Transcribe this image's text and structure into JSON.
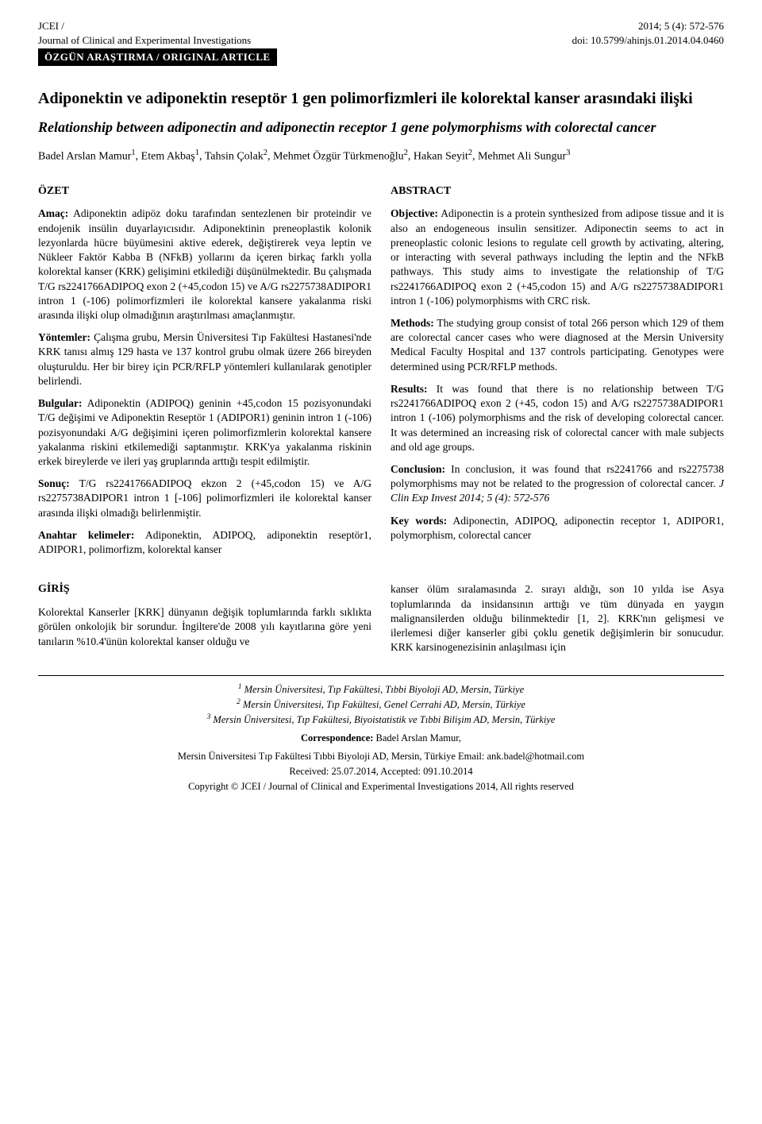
{
  "header": {
    "journal_abbrev": "JCEI /",
    "journal_full": "Journal of Clinical and Experimental Investigations",
    "issue": "2014; 5 (4): 572-576",
    "doi": "doi: 10.5799/ahinjs.01.2014.04.0460",
    "article_tag": "ÖZGÜN ARAŞTIRMA / ORIGINAL ARTICLE"
  },
  "titles": {
    "tr": "Adiponektin ve adiponektin reseptör 1 gen polimorfizmleri ile kolorektal kanser arasındaki ilişki",
    "en": "Relationship between adiponectin and adiponectin receptor 1 gene polymorphisms with colorectal cancer"
  },
  "authors_html": "Badel Arslan Mamur<sup>1</sup>, Etem Akbaş<sup>1</sup>, Tahsin Çolak<sup>2</sup>, Mehmet Özgür Türkmenoğlu<sup>2</sup>, Hakan Seyit<sup>2</sup>, Mehmet Ali Sungur<sup>3</sup>",
  "ozet": {
    "heading": "ÖZET",
    "amac_label": "Amaç:",
    "amac": " Adiponektin adipöz doku tarafından sentezlenen bir proteindir ve endojenik insülin duyarlayıcısıdır. Adiponektinin preneoplastik kolonik lezyonlarda hücre büyümesini aktive ederek, değiştirerek veya leptin ve Nükleer Faktör Kabba B (NFkB) yollarını da içeren birkaç farklı yolla kolorektal kanser (KRK) gelişimini etkilediği düşünülmektedir. Bu çalışmada T/G rs2241766ADIPOQ exon 2 (+45,codon 15) ve A/G rs2275738ADIPOR1 intron 1 (-106) polimorfizmleri ile kolorektal kansere yakalanma riski arasında ilişki olup olmadığının araştırılması amaçlanmıştır.",
    "yontem_label": "Yöntemler:",
    "yontem": " Çalışma grubu, Mersin Üniversitesi Tıp Fakültesi Hastanesi'nde KRK tanısı almış 129 hasta ve 137 kontrol grubu olmak üzere 266 bireyden oluşturuldu. Her bir birey için PCR/RFLP yöntemleri kullanılarak genotipler belirlendi.",
    "bulgular_label": "Bulgular:",
    "bulgular": " Adiponektin (ADIPOQ) geninin +45,codon 15 pozisyonundaki T/G değişimi ve Adiponektin Reseptör 1 (ADIPOR1) geninin intron 1 (-106) pozisyonundaki A/G değişimini içeren polimorfizmlerin kolorektal kansere yakalanma riskini etkilemediği saptanmıştır. KRK'ya yakalanma riskinin erkek bireylerde ve ileri yaş gruplarında arttığı tespit edilmiştir.",
    "sonuc_label": "Sonuç:",
    "sonuc": " T/G rs2241766ADIPOQ ekzon 2 (+45,codon 15) ve A/G rs2275738ADIPOR1 intron 1 [-106] polimorfizmleri ile kolorektal kanser arasında ilişki olmadığı belirlenmiştir.",
    "keywords_label": "Anahtar kelimeler:",
    "keywords": " Adiponektin, ADIPOQ, adiponektin reseptör1, ADIPOR1, polimorfizm, kolorektal kanser"
  },
  "abstract": {
    "heading": "ABSTRACT",
    "objective_label": "Objective:",
    "objective": " Adiponectin is a protein synthesized from adipose tissue and it is also an endogeneous insulin sensitizer. Adiponectin seems to act in preneoplastic colonic lesions to regulate cell growth by activating, altering, or interacting with several pathways including the leptin and the NFkB pathways. This study aims to investigate the relationship of T/G rs2241766ADIPOQ exon 2 (+45,codon 15) and A/G rs2275738ADIPOR1 intron 1 (-106) polymorphisms with CRC risk.",
    "methods_label": "Methods:",
    "methods": " The studying group consist of total 266 person which 129 of them are colorectal cancer cases who were diagnosed at the Mersin University Medical Faculty Hospital and 137 controls participating. Genotypes were determined using PCR/RFLP methods.",
    "results_label": "Results:",
    "results": " It was found that there is no relationship between T/G rs2241766ADIPOQ exon 2 (+45, codon 15) and A/G rs2275738ADIPOR1 intron 1 (-106) polymorphisms and the risk of developing colorectal cancer. It was determined an increasing risk of colorectal cancer with male subjects and old age groups.",
    "conclusion_label": "Conclusion:",
    "conclusion_html": " In conclusion, it was found that rs2241766 and rs2275738 polymorphisms may not be related to the progression of colorectal cancer. <i>J Clin Exp Invest 2014; 5 (4): 572-576</i>",
    "keywords_label": "Key words:",
    "keywords": " Adiponectin, ADIPOQ, adiponectin receptor 1, ADIPOR1, polymorphism, colorectal cancer"
  },
  "giris": {
    "heading": "GİRİŞ",
    "left": "Kolorektal Kanserler [KRK] dünyanın değişik toplumlarında farklı sıklıkta görülen onkolojik bir sorundur. İngiltere'de 2008 yılı kayıtlarına göre yeni tanıların %10.4'ünün kolorektal kanser olduğu ve",
    "right": "kanser ölüm sıralamasında 2. sırayı aldığı, son 10 yılda ise Asya toplumlarında da insidansının arttığı ve tüm dünyada en yaygın malignansilerden olduğu bilinmektedir [1, 2]. KRK'nın gelişmesi ve ilerlemesi diğer kanserler gibi çoklu genetik değişimlerin bir sonucudur. KRK karsinogenezisinin anlaşılması için"
  },
  "affiliations": {
    "a1_html": "<sup>1</sup> Mersin Üniversitesi, Tıp Fakültesi, Tıbbi Biyoloji AD, Mersin, Türkiye",
    "a2_html": "<sup>2</sup> Mersin Üniversitesi, Tıp Fakültesi, Genel Cerrahi AD, Mersin, Türkiye",
    "a3_html": "<sup>3</sup> Mersin Üniversitesi, Tıp Fakültesi, Biyoistatistik ve Tıbbi Bilişim AD, Mersin, Türkiye",
    "corr_label": "Correspondence:",
    "corr_name": " Badel Arslan Mamur,",
    "corr_addr": "Mersin Üniversitesi Tıp Fakültesi Tıbbi Biyoloji AD, Mersin, Türkiye     Email: ank.badel@hotmail.com",
    "dates": "Received: 25.07.2014, Accepted: 091.10.2014",
    "copyright": "Copyright © JCEI / Journal of Clinical and Experimental Investigations 2014, All rights reserved"
  },
  "style": {
    "body_width": 960,
    "body_font": "Georgia, 'Times New Roman', serif",
    "body_font_size": 13.5,
    "title_tr_size": 20,
    "title_en_size": 18,
    "heading_size": 14,
    "affil_size": 12.5,
    "bg": "#ffffff",
    "fg": "#000000",
    "tag_bg": "#000000",
    "tag_fg": "#ffffff"
  }
}
